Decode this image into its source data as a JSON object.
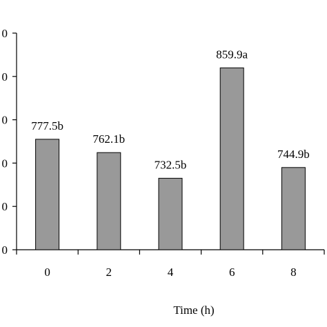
{
  "chart_data": {
    "type": "bar",
    "categories": [
      "0",
      "2",
      "4",
      "6",
      "8"
    ],
    "values": [
      777.5,
      762.1,
      732.5,
      859.9,
      744.9
    ],
    "data_labels": [
      "777.5b",
      "762.1b",
      "732.5b",
      "859.9a",
      "744.9b"
    ],
    "title": "",
    "xlabel": "Time (h)",
    "ylabel": "",
    "y_tick_labels": [
      "0",
      "0",
      "0",
      "0",
      "0",
      "0"
    ],
    "ylim": [
      650,
      900
    ],
    "bar_color": "#999999",
    "bar_stroke": "#000000",
    "grid": false,
    "legend": false
  }
}
